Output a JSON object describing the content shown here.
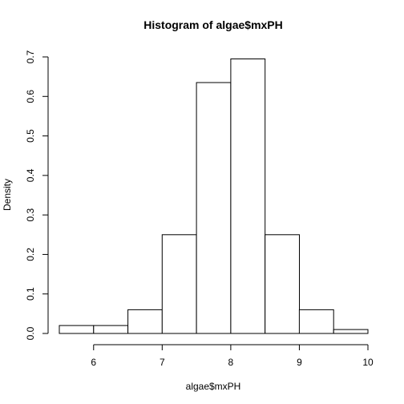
{
  "chart_data": {
    "type": "bar",
    "title": "Histogram of algae$mxPH",
    "xlabel": "algae$mxPH",
    "ylabel": "Density",
    "bins": [
      {
        "start": 5.5,
        "end": 6.0,
        "density": 0.02
      },
      {
        "start": 6.0,
        "end": 6.5,
        "density": 0.02
      },
      {
        "start": 6.5,
        "end": 7.0,
        "density": 0.06
      },
      {
        "start": 7.0,
        "end": 7.5,
        "density": 0.25
      },
      {
        "start": 7.5,
        "end": 8.0,
        "density": 0.635
      },
      {
        "start": 8.0,
        "end": 8.5,
        "density": 0.695
      },
      {
        "start": 8.5,
        "end": 9.0,
        "density": 0.25
      },
      {
        "start": 9.0,
        "end": 9.5,
        "density": 0.06
      },
      {
        "start": 9.5,
        "end": 10.0,
        "density": 0.01
      }
    ],
    "xlim": [
      5.5,
      10.0
    ],
    "ylim": [
      0,
      0.7
    ],
    "xticks": [
      6,
      7,
      8,
      9,
      10
    ],
    "yticks": [
      0.0,
      0.1,
      0.2,
      0.3,
      0.4,
      0.5,
      0.6,
      0.7
    ],
    "xtick_labels": [
      "6",
      "7",
      "8",
      "9",
      "10"
    ],
    "ytick_labels": [
      "0.0",
      "0.1",
      "0.2",
      "0.3",
      "0.4",
      "0.5",
      "0.6",
      "0.7"
    ],
    "grid": false,
    "legend": "none"
  }
}
